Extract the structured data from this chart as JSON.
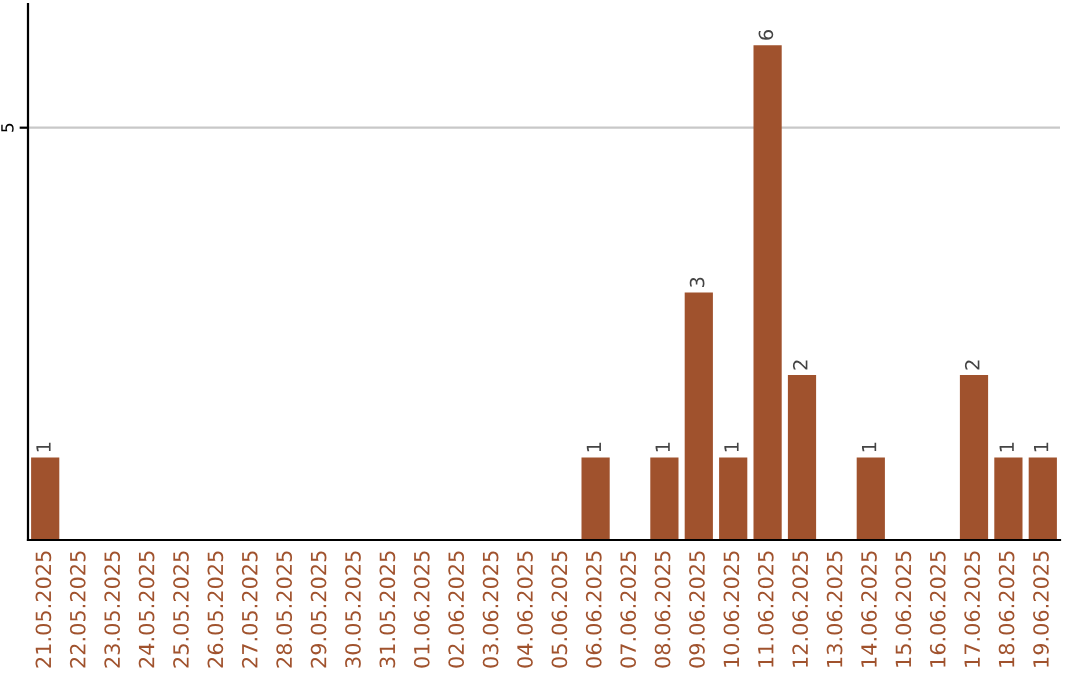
{
  "chart_data": {
    "type": "bar",
    "categories": [
      "21.05.2025",
      "22.05.2025",
      "23.05.2025",
      "24.05.2025",
      "25.05.2025",
      "26.05.2025",
      "27.05.2025",
      "28.05.2025",
      "29.05.2025",
      "30.05.2025",
      "31.05.2025",
      "01.06.2025",
      "02.06.2025",
      "03.06.2025",
      "04.06.2025",
      "05.06.2025",
      "06.06.2025",
      "07.06.2025",
      "08.06.2025",
      "09.06.2025",
      "10.06.2025",
      "11.06.2025",
      "12.06.2025",
      "13.06.2025",
      "14.06.2025",
      "15.06.2025",
      "16.06.2025",
      "17.06.2025",
      "18.06.2025",
      "19.06.2025"
    ],
    "values": [
      1,
      0,
      0,
      0,
      0,
      0,
      0,
      0,
      0,
      0,
      0,
      0,
      0,
      0,
      0,
      0,
      1,
      0,
      1,
      3,
      1,
      6,
      2,
      0,
      1,
      0,
      0,
      2,
      1,
      1
    ],
    "value_labels": [
      "1",
      null,
      null,
      null,
      null,
      null,
      null,
      null,
      null,
      null,
      null,
      null,
      null,
      null,
      null,
      null,
      "1",
      null,
      "1",
      "3",
      "1",
      "6",
      "2",
      null,
      "1",
      null,
      null,
      "2",
      "1",
      "1"
    ],
    "color": "#a0522d",
    "ylim": [
      0,
      6.5
    ],
    "yticks": [
      5
    ],
    "grid": "y"
  }
}
